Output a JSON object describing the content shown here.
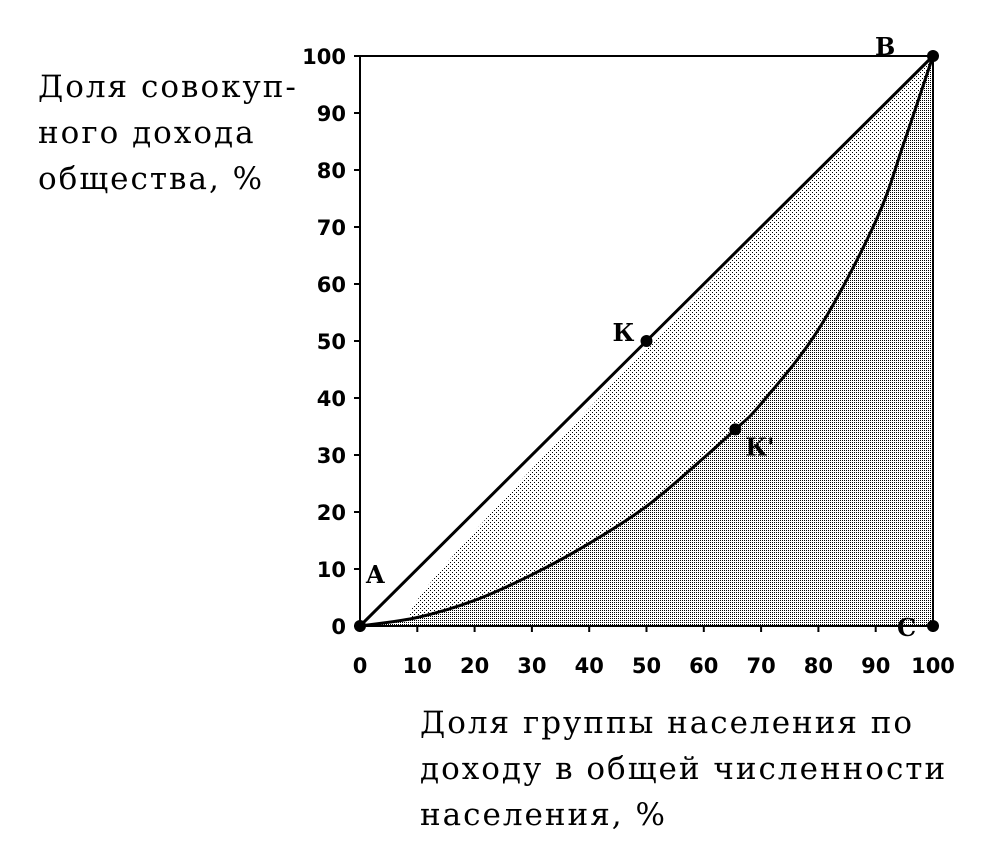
{
  "chart_data": {
    "type": "line",
    "ylabel_lines": [
      "Доля совокуп-",
      "ного дохода",
      "общества, %"
    ],
    "xlabel_lines": [
      "Доля группы населения по",
      "доходу в общей численности",
      "населения, %"
    ],
    "xlim": [
      0,
      100
    ],
    "ylim": [
      0,
      100
    ],
    "x_ticks": [
      "0",
      "10",
      "20",
      "30",
      "40",
      "50",
      "60",
      "70",
      "80",
      "90",
      "100"
    ],
    "y_ticks": [
      "0",
      "10",
      "20",
      "30",
      "40",
      "50",
      "60",
      "70",
      "80",
      "90",
      "100"
    ],
    "grid": false,
    "series": [
      {
        "x": [
          0,
          100
        ],
        "y": [
          0,
          100
        ]
      },
      {
        "x": [
          0,
          10,
          20,
          30,
          40,
          50,
          60,
          65.5,
          70,
          80,
          90,
          95,
          100
        ],
        "y": [
          0,
          1.5,
          4.5,
          9,
          14.5,
          21,
          29.5,
          34.5,
          39,
          52,
          71,
          85,
          100
        ]
      }
    ],
    "points": [
      {
        "label": "A",
        "x": 0,
        "y": 0
      },
      {
        "label": "B",
        "x": 100,
        "y": 100
      },
      {
        "label": "C",
        "x": 100,
        "y": 0
      },
      {
        "label": "К",
        "x": 50,
        "y": 50
      },
      {
        "label": "К'",
        "x": 65.5,
        "y": 34.5
      }
    ]
  }
}
